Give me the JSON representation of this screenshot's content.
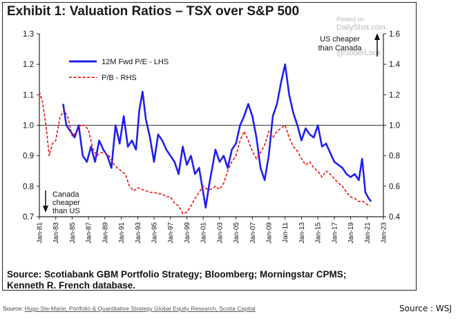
{
  "exhibit_title": "Exhibit 1: Valuation Ratios – TSX over S&P 500",
  "source_note": [
    "Source: Scotiabank GBM Portfolio Strategy; Bloomberg; Morningstar CPMS;",
    "Kenneth R. French database."
  ],
  "bottom_source": {
    "prefix": "Source: ",
    "link": "Hugo Ste-Marie, Portfolio & Quantitative Strategy Global Equity Research, Scotia Capital"
  },
  "credit": "Source : WSJ",
  "watermark": [
    "Posted on",
    "DailyShot.com",
    "@SoberLook"
  ],
  "colors": {
    "pe": "#1f1ff0",
    "pb": "#ee1b1b",
    "axis": "#222222"
  },
  "chart_data": {
    "type": "line",
    "title": "Exhibit 1: Valuation Ratios – TSX over S&P 500",
    "x_ticks": [
      "Jan-81",
      "Jan-83",
      "Jan-85",
      "Jan-87",
      "Jan-89",
      "Jan-91",
      "Jan-93",
      "Jan-95",
      "Jan-97",
      "Jan-99",
      "Jan-01",
      "Jan-03",
      "Jan-05",
      "Jan-07",
      "Jan-09",
      "Jan-11",
      "Jan-13",
      "Jan-15",
      "Jan-17",
      "Jan-19",
      "Jan-21",
      "Jan-23"
    ],
    "x_range": [
      1981,
      2023
    ],
    "y_left": {
      "range": [
        0.7,
        1.3
      ],
      "ticks": [
        "0.7",
        "0.8",
        "0.9",
        "1.0",
        "1.1",
        "1.2",
        "1.3"
      ]
    },
    "y_right": {
      "range": [
        0.4,
        1.6
      ],
      "ticks": [
        "0.4",
        "0.6",
        "0.8",
        "1.0",
        "1.2",
        "1.4",
        "1.6"
      ]
    },
    "legend": [
      {
        "label": "12M Fwd P/E - LHS",
        "style": "solid"
      },
      {
        "label": "P/B - RHS",
        "style": "dashed"
      }
    ],
    "annotations": {
      "top": [
        "US cheaper",
        "than Canada"
      ],
      "bottom": [
        "Canada",
        "cheaper",
        "than US"
      ]
    },
    "series": [
      {
        "name": "12M Fwd P/E - LHS",
        "axis": "left",
        "x": [
          1983.9,
          1984.3,
          1984.8,
          1985.3,
          1985.8,
          1986.3,
          1986.8,
          1987.3,
          1987.8,
          1988.3,
          1988.8,
          1989.3,
          1989.8,
          1990.3,
          1990.8,
          1991.3,
          1991.8,
          1992.3,
          1992.8,
          1993.2,
          1993.6,
          1994.0,
          1994.5,
          1995.0,
          1995.5,
          1996.0,
          1996.5,
          1997.0,
          1997.5,
          1998.0,
          1998.5,
          1999.0,
          1999.5,
          2000.0,
          2000.5,
          2001.0,
          2001.3,
          2001.7,
          2002.1,
          2002.5,
          2003.0,
          2003.5,
          2004.0,
          2004.5,
          2005.0,
          2005.5,
          2006.0,
          2006.5,
          2007.0,
          2007.5,
          2008.0,
          2008.5,
          2009.0,
          2009.5,
          2010.0,
          2010.5,
          2011.0,
          2011.5,
          2012.0,
          2012.5,
          2013.0,
          2013.5,
          2014.0,
          2014.5,
          2015.0,
          2015.5,
          2016.0,
          2016.5,
          2017.0,
          2017.5,
          2018.0,
          2018.5,
          2019.0,
          2019.5,
          2020.0,
          2020.4,
          2020.8,
          2021.2,
          2021.5
        ],
        "y": [
          1.07,
          1.0,
          0.98,
          0.96,
          1.0,
          0.9,
          0.88,
          0.93,
          0.88,
          0.95,
          0.92,
          0.9,
          0.86,
          1.0,
          0.94,
          1.03,
          0.93,
          0.95,
          0.92,
          1.05,
          1.11,
          1.02,
          0.96,
          0.88,
          0.97,
          0.95,
          0.92,
          0.9,
          0.88,
          0.84,
          0.93,
          0.87,
          0.9,
          0.84,
          0.86,
          0.78,
          0.73,
          0.8,
          0.86,
          0.92,
          0.88,
          0.9,
          0.86,
          0.92,
          0.94,
          1.0,
          1.03,
          1.07,
          1.03,
          0.96,
          0.86,
          0.82,
          0.9,
          1.03,
          1.07,
          1.14,
          1.2,
          1.1,
          1.04,
          1.0,
          0.95,
          0.99,
          0.97,
          0.96,
          1.0,
          0.93,
          0.94,
          0.91,
          0.88,
          0.87,
          0.86,
          0.84,
          0.83,
          0.84,
          0.82,
          0.89,
          0.78,
          0.76,
          0.75
        ]
      },
      {
        "name": "P/B - RHS",
        "axis": "right",
        "x": [
          1981.0,
          1981.4,
          1981.8,
          1982.2,
          1982.6,
          1983.0,
          1983.5,
          1984.0,
          1984.5,
          1985.0,
          1985.5,
          1986.0,
          1986.5,
          1987.0,
          1987.5,
          1988.0,
          1988.5,
          1989.0,
          1989.5,
          1990.0,
          1990.5,
          1991.0,
          1991.5,
          1992.0,
          1992.5,
          1993.0,
          1993.5,
          1994.0,
          1994.5,
          1995.0,
          1995.5,
          1996.0,
          1996.5,
          1997.0,
          1997.5,
          1998.0,
          1998.5,
          1999.0,
          1999.5,
          2000.0,
          2000.5,
          2001.0,
          2001.5,
          2002.0,
          2002.5,
          2003.0,
          2003.5,
          2004.0,
          2004.5,
          2005.0,
          2005.5,
          2006.0,
          2006.5,
          2007.0,
          2007.5,
          2008.0,
          2008.5,
          2009.0,
          2009.5,
          2010.0,
          2010.5,
          2011.0,
          2011.5,
          2012.0,
          2012.5,
          2013.0,
          2013.5,
          2014.0,
          2014.5,
          2015.0,
          2015.5,
          2016.0,
          2016.5,
          2017.0,
          2017.5,
          2018.0,
          2018.5,
          2019.0,
          2019.5,
          2020.0,
          2020.5,
          2021.0,
          2021.4
        ],
        "y": [
          1.22,
          1.15,
          1.0,
          0.8,
          0.88,
          0.9,
          1.05,
          1.1,
          1.05,
          0.93,
          0.95,
          1.0,
          1.0,
          0.97,
          0.85,
          0.8,
          0.82,
          0.82,
          0.8,
          0.75,
          0.72,
          0.7,
          0.68,
          0.6,
          0.57,
          0.59,
          0.58,
          0.57,
          0.56,
          0.56,
          0.55,
          0.55,
          0.53,
          0.53,
          0.49,
          0.47,
          0.42,
          0.43,
          0.47,
          0.52,
          0.56,
          0.6,
          0.58,
          0.58,
          0.6,
          0.58,
          0.62,
          0.7,
          0.76,
          0.8,
          0.9,
          0.96,
          0.9,
          0.83,
          0.78,
          0.82,
          0.87,
          0.96,
          0.92,
          0.96,
          0.98,
          1.0,
          0.92,
          0.86,
          0.83,
          0.78,
          0.74,
          0.76,
          0.72,
          0.7,
          0.66,
          0.7,
          0.68,
          0.65,
          0.62,
          0.6,
          0.56,
          0.53,
          0.52,
          0.5,
          0.5,
          0.48,
          0.47
        ]
      }
    ]
  }
}
